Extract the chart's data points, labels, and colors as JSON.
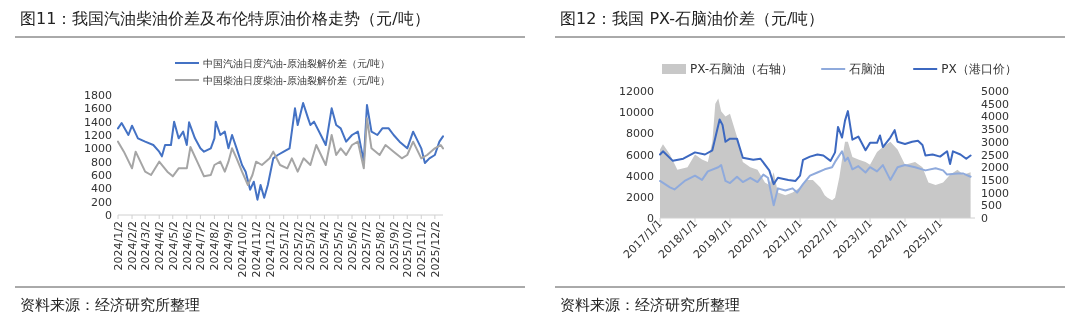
{
  "chart_data": [
    {
      "type": "line",
      "title": "图11：我国汽油柴油价差及布伦特原油价格走势（元/吨）",
      "annotations": [
        "资料来源：经济研究所整理"
      ],
      "legend": "top",
      "xlim": [
        "2024-01-02",
        "2025-12-20"
      ],
      "ylim": [
        0,
        1800
      ],
      "yticks": [
        0,
        200,
        400,
        600,
        800,
        1000,
        1200,
        1400,
        1600,
        1800
      ],
      "xticks": [
        {
          "value": "2024-01-02",
          "label": "2024/1/2"
        },
        {
          "value": "2024-02-02",
          "label": "2024/2/2"
        },
        {
          "value": "2024-03-02",
          "label": "2024/3/2"
        },
        {
          "value": "2024-04-02",
          "label": "2024/4/2"
        },
        {
          "value": "2024-05-02",
          "label": "2024/5/2"
        },
        {
          "value": "2024-06-02",
          "label": "2024/6/2"
        },
        {
          "value": "2024-07-02",
          "label": "2024/7/2"
        },
        {
          "value": "2024-08-02",
          "label": "2024/8/2"
        },
        {
          "value": "2024-09-02",
          "label": "2024/9/2"
        },
        {
          "value": "2024-10-02",
          "label": "2024/10/2"
        },
        {
          "value": "2024-11-02",
          "label": "2024/11/2"
        },
        {
          "value": "2024-12-02",
          "label": "2024/12/2"
        },
        {
          "value": "2025-01-02",
          "label": "2025/1/2"
        },
        {
          "value": "2025-02-02",
          "label": "2025/2/2"
        },
        {
          "value": "2025-03-02",
          "label": "2025/3/2"
        },
        {
          "value": "2025-04-02",
          "label": "2025/4/2"
        },
        {
          "value": "2025-05-02",
          "label": "2025/5/2"
        },
        {
          "value": "2025-06-02",
          "label": "2025/6/2"
        },
        {
          "value": "2025-07-02",
          "label": "2025/7/2"
        },
        {
          "value": "2025-08-02",
          "label": "2025/8/2"
        },
        {
          "value": "2025-09-02",
          "label": "2025/9/2"
        },
        {
          "value": "2025-10-02",
          "label": "2025/10/2"
        },
        {
          "value": "2025-11-02",
          "label": "2025/11/2"
        },
        {
          "value": "2025-12-02",
          "label": "2025/12/2"
        }
      ],
      "series": [
        {
          "name": "中国汽油日度汽油-原油裂解价差（元/吨）",
          "color": "#4472c4",
          "x": [
            "2024-01-02",
            "2024-01-10",
            "2024-01-25",
            "2024-02-02",
            "2024-02-15",
            "2024-03-02",
            "2024-03-20",
            "2024-04-02",
            "2024-04-08",
            "2024-04-15",
            "2024-04-28",
            "2024-05-05",
            "2024-05-15",
            "2024-05-25",
            "2024-06-02",
            "2024-06-07",
            "2024-06-20",
            "2024-07-02",
            "2024-07-10",
            "2024-07-25",
            "2024-08-02",
            "2024-08-05",
            "2024-08-15",
            "2024-08-25",
            "2024-09-02",
            "2024-09-10",
            "2024-09-20",
            "2024-10-02",
            "2024-10-10",
            "2024-10-20",
            "2024-10-28",
            "2024-11-05",
            "2024-11-12",
            "2024-11-20",
            "2024-11-28",
            "2024-12-10",
            "2024-12-20",
            "2025-01-02",
            "2025-01-15",
            "2025-01-27",
            "2025-02-02",
            "2025-02-14",
            "2025-02-25",
            "2025-03-02",
            "2025-03-10",
            "2025-03-25",
            "2025-04-05",
            "2025-04-18",
            "2025-04-28",
            "2025-05-08",
            "2025-05-20",
            "2025-06-02",
            "2025-06-15",
            "2025-06-28",
            "2025-07-05",
            "2025-07-15",
            "2025-07-28",
            "2025-08-08",
            "2025-08-22",
            "2025-09-02",
            "2025-09-15",
            "2025-10-02",
            "2025-10-15",
            "2025-11-02",
            "2025-11-10",
            "2025-11-20",
            "2025-12-02",
            "2025-12-12",
            "2025-12-20"
          ],
          "values": [
            1300,
            1380,
            1200,
            1340,
            1150,
            1100,
            1050,
            950,
            880,
            1050,
            1050,
            1400,
            1150,
            1250,
            1050,
            1390,
            1150,
            1000,
            950,
            1000,
            1150,
            1400,
            1200,
            1250,
            1000,
            1200,
            1000,
            750,
            650,
            380,
            500,
            230,
            450,
            260,
            450,
            850,
            900,
            950,
            1000,
            1600,
            1350,
            1680,
            1450,
            1350,
            1400,
            1200,
            1050,
            1600,
            1350,
            1300,
            1100,
            1200,
            1250,
            800,
            1650,
            1250,
            1200,
            1300,
            1300,
            1200,
            1100,
            1000,
            1250,
            1000,
            780,
            850,
            900,
            1100,
            1180
          ]
        },
        {
          "name": "中国柴油日度柴油-原油裂解价差（元/吨）",
          "color": "#a5a5a5",
          "x": [
            "2024-01-02",
            "2024-01-15",
            "2024-02-02",
            "2024-02-10",
            "2024-03-02",
            "2024-03-15",
            "2024-04-02",
            "2024-04-20",
            "2024-05-02",
            "2024-05-15",
            "2024-06-02",
            "2024-06-10",
            "2024-06-25",
            "2024-07-10",
            "2024-07-25",
            "2024-08-02",
            "2024-08-15",
            "2024-08-25",
            "2024-09-02",
            "2024-09-10",
            "2024-09-20",
            "2024-10-02",
            "2024-10-15",
            "2024-10-25",
            "2024-11-02",
            "2024-11-15",
            "2024-12-02",
            "2024-12-10",
            "2024-12-25",
            "2025-01-10",
            "2025-01-20",
            "2025-02-02",
            "2025-02-15",
            "2025-03-02",
            "2025-03-15",
            "2025-04-05",
            "2025-04-18",
            "2025-04-28",
            "2025-05-08",
            "2025-05-20",
            "2025-06-02",
            "2025-06-15",
            "2025-06-28",
            "2025-07-05",
            "2025-07-15",
            "2025-08-02",
            "2025-08-15",
            "2025-09-02",
            "2025-09-20",
            "2025-10-02",
            "2025-10-15",
            "2025-11-02",
            "2025-11-15",
            "2025-12-02",
            "2025-12-15",
            "2025-12-20"
          ],
          "values": [
            1100,
            950,
            700,
            950,
            650,
            600,
            800,
            650,
            580,
            700,
            700,
            1020,
            800,
            580,
            600,
            750,
            800,
            650,
            800,
            1000,
            850,
            650,
            450,
            600,
            800,
            750,
            850,
            950,
            750,
            700,
            850,
            650,
            850,
            750,
            1050,
            750,
            1200,
            900,
            1000,
            900,
            1050,
            1100,
            700,
            1450,
            1000,
            900,
            1050,
            950,
            850,
            900,
            1100,
            850,
            900,
            1000,
            1050,
            1000
          ]
        }
      ]
    },
    {
      "type": "line",
      "title": "图12：我国 PX-石脑油价差（元/吨）",
      "annotations": [
        "资料来源：经济研究所整理"
      ],
      "legend": "top",
      "xlim": [
        "2017-01-01",
        "2025-12-31"
      ],
      "ylim": [
        0,
        12000
      ],
      "yticks": [
        0,
        2000,
        4000,
        6000,
        8000,
        10000,
        12000
      ],
      "y2lim": [
        0,
        5000
      ],
      "y2ticks": [
        0,
        500,
        1000,
        1500,
        2000,
        2500,
        3000,
        3500,
        4000,
        4500,
        5000
      ],
      "xticks": [
        {
          "value": "2017-01-01",
          "label": "2017/1/1"
        },
        {
          "value": "2018-01-01",
          "label": "2018/1/1"
        },
        {
          "value": "2019-01-01",
          "label": "2019/1/1"
        },
        {
          "value": "2020-01-01",
          "label": "2020/1/1"
        },
        {
          "value": "2021-01-01",
          "label": "2021/1/1"
        },
        {
          "value": "2022-01-01",
          "label": "2022/1/1"
        },
        {
          "value": "2023-01-01",
          "label": "2023/1/1"
        },
        {
          "value": "2024-01-01",
          "label": "2024/1/1"
        },
        {
          "value": "2025-01-01",
          "label": "2025/1/1"
        }
      ],
      "series": [
        {
          "name": "PX-石脑油（右轴）",
          "type": "area",
          "axis": "y2",
          "color": "#c8c8c8",
          "x": [
            "2017-01-01",
            "2017-02-01",
            "2017-04-15",
            "2017-07-01",
            "2017-10-15",
            "2018-01-01",
            "2018-03-15",
            "2018-05-15",
            "2018-07-01",
            "2018-08-01",
            "2018-09-01",
            "2018-10-01",
            "2018-11-15",
            "2019-01-01",
            "2019-03-15",
            "2019-05-15",
            "2019-08-01",
            "2019-10-15",
            "2020-01-01",
            "2020-02-15",
            "2020-04-01",
            "2020-05-15",
            "2020-08-01",
            "2020-10-15",
            "2021-01-01",
            "2021-03-15",
            "2021-05-15",
            "2021-08-01",
            "2021-09-15",
            "2021-10-15",
            "2021-12-01",
            "2022-01-01",
            "2022-02-15",
            "2022-03-15",
            "2022-04-15",
            "2022-05-15",
            "2022-07-01",
            "2022-09-01",
            "2022-11-15",
            "2023-01-01",
            "2023-03-15",
            "2023-05-15",
            "2023-08-01",
            "2023-10-15",
            "2024-01-01",
            "2024-04-15",
            "2024-07-01",
            "2024-09-01",
            "2024-11-15",
            "2025-02-01",
            "2025-04-15",
            "2025-07-01",
            "2025-09-01",
            "2025-11-15"
          ],
          "values": [
            2700,
            2900,
            2500,
            1900,
            2000,
            2500,
            2300,
            2200,
            3000,
            4500,
            4700,
            4200,
            4000,
            4100,
            3200,
            2200,
            2000,
            1900,
            1400,
            1300,
            1800,
            1000,
            900,
            1000,
            1200,
            1500,
            1500,
            1200,
            900,
            800,
            700,
            800,
            1600,
            2300,
            3000,
            3000,
            2400,
            2300,
            2200,
            2100,
            2600,
            2800,
            3000,
            2700,
            2100,
            2200,
            2000,
            1400,
            1300,
            1400,
            1700,
            1900,
            1700,
            1800
          ]
        },
        {
          "name": "石脑油",
          "color": "#8faadc",
          "x": [
            "2017-01-01",
            "2017-04-15",
            "2017-06-01",
            "2017-09-15",
            "2018-01-01",
            "2018-03-15",
            "2018-05-15",
            "2018-09-01",
            "2018-10-01",
            "2018-11-15",
            "2019-01-01",
            "2019-03-15",
            "2019-05-15",
            "2019-08-01",
            "2019-10-15",
            "2019-12-15",
            "2020-02-01",
            "2020-04-01",
            "2020-05-15",
            "2020-08-01",
            "2020-10-15",
            "2020-12-01",
            "2021-02-01",
            "2021-04-15",
            "2021-07-01",
            "2021-09-15",
            "2021-12-01",
            "2022-01-01",
            "2022-03-15",
            "2022-04-15",
            "2022-05-15",
            "2022-07-01",
            "2022-09-01",
            "2022-11-15",
            "2023-01-01",
            "2023-03-15",
            "2023-05-15",
            "2023-08-01",
            "2023-10-15",
            "2024-01-01",
            "2024-04-15",
            "2024-08-01",
            "2024-11-15",
            "2025-02-01",
            "2025-03-15",
            "2025-07-01",
            "2025-09-01",
            "2025-11-15"
          ],
          "values": [
            3500,
            2900,
            2700,
            3500,
            4000,
            3600,
            4400,
            4800,
            5000,
            3500,
            3300,
            3900,
            3400,
            3800,
            3400,
            4100,
            3800,
            1200,
            2800,
            2600,
            2800,
            2400,
            3200,
            4000,
            4300,
            4600,
            4800,
            5300,
            6300,
            5400,
            5700,
            4600,
            4900,
            4300,
            4800,
            4400,
            5000,
            3600,
            4800,
            5000,
            4800,
            4500,
            4700,
            4500,
            4100,
            4200,
            4200,
            3900
          ]
        },
        {
          "name": "PX（港口价）",
          "color": "#3c68c0",
          "x": [
            "2017-01-01",
            "2017-02-01",
            "2017-05-15",
            "2017-09-01",
            "2018-01-01",
            "2018-04-15",
            "2018-07-01",
            "2018-09-15",
            "2018-10-15",
            "2018-11-15",
            "2019-01-01",
            "2019-03-15",
            "2019-05-15",
            "2019-09-01",
            "2019-11-15",
            "2020-02-15",
            "2020-04-01",
            "2020-05-15",
            "2020-09-01",
            "2020-11-15",
            "2021-01-01",
            "2021-02-01",
            "2021-04-15",
            "2021-07-01",
            "2021-09-01",
            "2021-11-15",
            "2022-01-01",
            "2022-02-01",
            "2022-03-15",
            "2022-04-15",
            "2022-05-15",
            "2022-07-01",
            "2022-09-01",
            "2022-11-15",
            "2023-01-01",
            "2023-03-15",
            "2023-04-15",
            "2023-05-15",
            "2023-08-01",
            "2023-09-15",
            "2023-10-15",
            "2024-01-01",
            "2024-03-15",
            "2024-05-15",
            "2024-07-01",
            "2024-08-01",
            "2024-10-15",
            "2025-01-01",
            "2025-03-15",
            "2025-04-15",
            "2025-05-15",
            "2025-08-01",
            "2025-10-01",
            "2025-11-15"
          ],
          "values": [
            6000,
            6300,
            5400,
            5600,
            6200,
            6000,
            6400,
            9300,
            8800,
            7200,
            7500,
            7500,
            5700,
            5500,
            5600,
            4500,
            3200,
            3800,
            3600,
            3500,
            4000,
            5500,
            5800,
            6000,
            5900,
            5400,
            6200,
            8600,
            7600,
            9200,
            10100,
            7400,
            7700,
            6400,
            7100,
            7100,
            7800,
            6700,
            7600,
            8300,
            7200,
            7000,
            7200,
            7300,
            6900,
            5900,
            6000,
            5800,
            6300,
            5100,
            6300,
            6000,
            5600,
            5900
          ]
        }
      ]
    }
  ]
}
